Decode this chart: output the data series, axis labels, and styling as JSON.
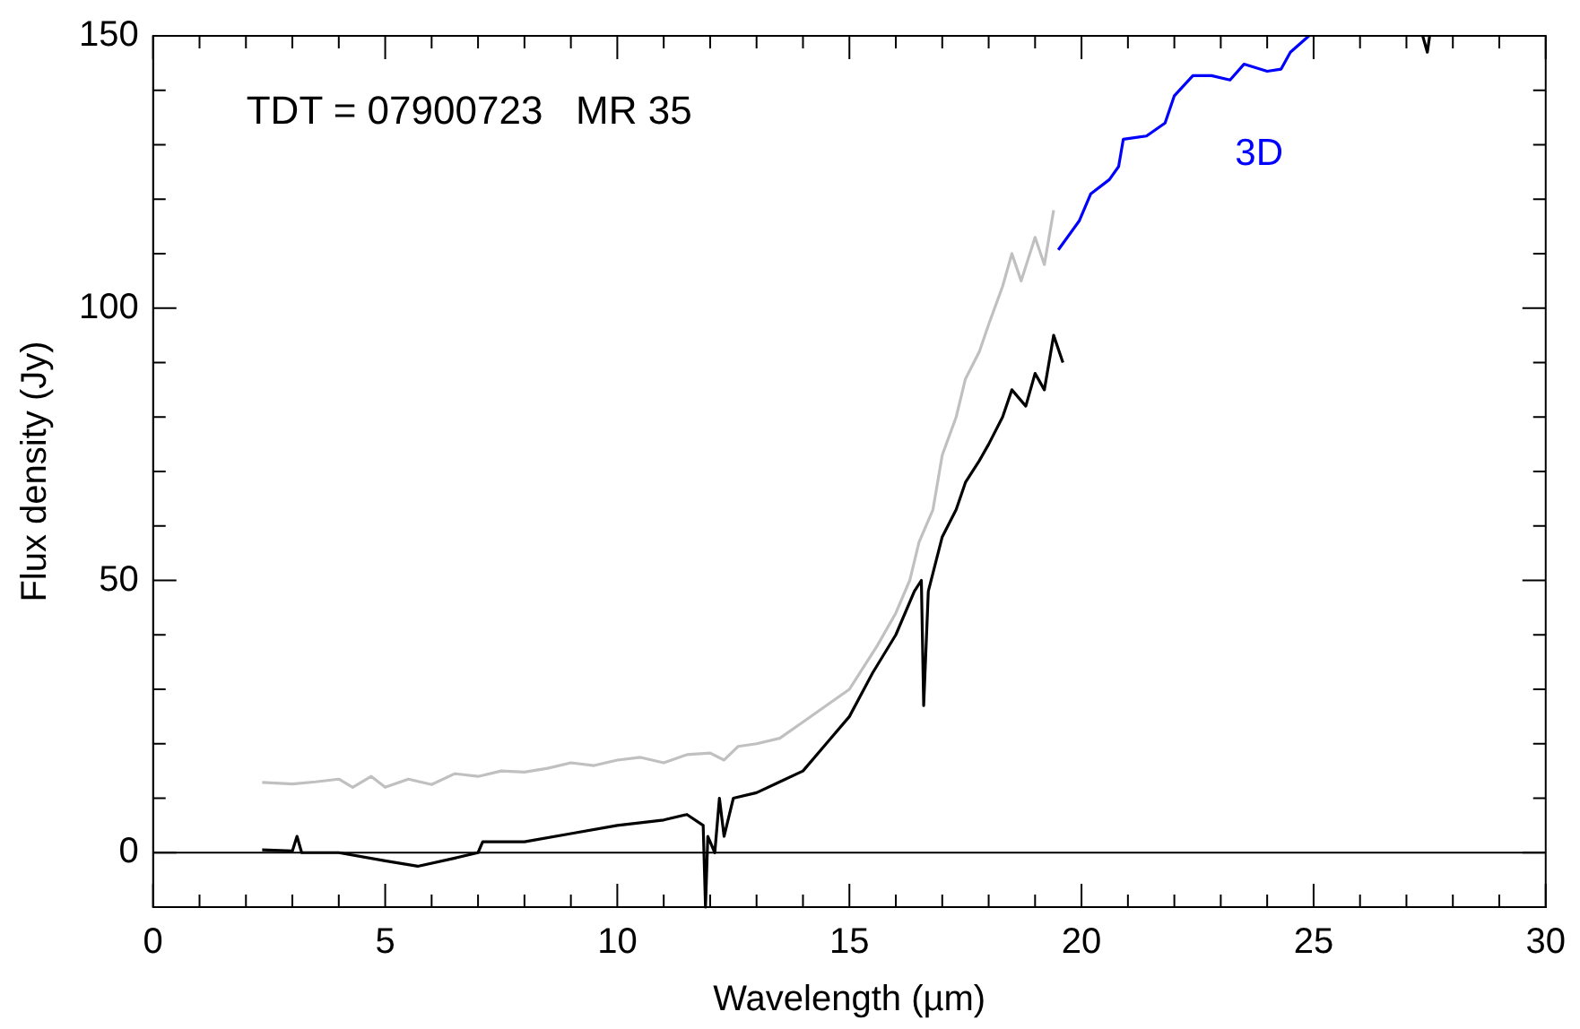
{
  "chart_data": {
    "type": "line",
    "xlabel": "Wavelength (µm)",
    "ylabel": "Flux density (Jy)",
    "xlim": [
      0,
      30
    ],
    "ylim": [
      -10,
      150
    ],
    "xticks": [
      0,
      {
        "value": 1,
        "label": null
      },
      {
        "value": 2,
        "label": null
      },
      {
        "value": 3,
        "label": null
      },
      {
        "value": 4,
        "label": null
      },
      5,
      {
        "value": 6,
        "label": null
      },
      {
        "value": 7,
        "label": null
      },
      {
        "value": 8,
        "label": null
      },
      {
        "value": 9,
        "label": null
      },
      10,
      {
        "value": 11,
        "label": null
      },
      {
        "value": 12,
        "label": null
      },
      {
        "value": 13,
        "label": null
      },
      {
        "value": 14,
        "label": null
      },
      15,
      {
        "value": 16,
        "label": null
      },
      {
        "value": 17,
        "label": null
      },
      {
        "value": 18,
        "label": null
      },
      {
        "value": 19,
        "label": null
      },
      20,
      {
        "value": 21,
        "label": null
      },
      {
        "value": 22,
        "label": null
      },
      {
        "value": 23,
        "label": null
      },
      {
        "value": 24,
        "label": null
      },
      25,
      {
        "value": 26,
        "label": null
      },
      {
        "value": 27,
        "label": null
      },
      {
        "value": 28,
        "label": null
      },
      {
        "value": 29,
        "label": null
      },
      30
    ],
    "yticks": [
      {
        "value": -10,
        "label": null
      },
      0,
      {
        "value": 10,
        "label": null
      },
      {
        "value": 20,
        "label": null
      },
      {
        "value": 30,
        "label": null
      },
      {
        "value": 40,
        "label": null
      },
      50,
      {
        "value": 60,
        "label": null
      },
      {
        "value": 70,
        "label": null
      },
      {
        "value": 80,
        "label": null
      },
      {
        "value": 90,
        "label": null
      },
      100,
      {
        "value": 110,
        "label": null
      },
      {
        "value": 120,
        "label": null
      },
      {
        "value": 130,
        "label": null
      },
      {
        "value": 140,
        "label": null
      },
      150
    ],
    "annotations": [
      "TDT = 07900723   MR 35"
    ],
    "ref_lines": [
      {
        "axis": "y",
        "value": 0,
        "color": "#000000"
      }
    ],
    "marker": "none",
    "line_style": "solid",
    "legend": false,
    "series": [
      {
        "color": "#c0c0c0",
        "x": [
          2.35,
          3.0,
          3.5,
          4.0,
          4.3,
          4.7,
          5.0,
          5.5,
          6.0,
          6.5,
          7.0,
          7.5,
          8.0,
          8.5,
          9.0,
          9.5,
          10.0,
          10.5,
          11.0,
          11.5,
          12.0,
          12.3,
          12.6,
          13.0,
          13.5,
          14.0,
          14.5,
          15.0,
          15.3,
          15.6,
          16.0,
          16.3,
          16.5,
          16.8,
          17.0,
          17.3,
          17.5,
          17.8,
          18.0,
          18.3,
          18.5,
          18.7,
          19.0,
          19.2,
          19.4
        ],
        "values": [
          12.9,
          12.6,
          13.0,
          13.5,
          12.0,
          14.0,
          12.0,
          13.5,
          12.5,
          14.5,
          14.0,
          15.0,
          14.8,
          15.5,
          16.5,
          16.0,
          17.0,
          17.5,
          16.5,
          18.0,
          18.3,
          17.0,
          19.5,
          20.0,
          21.0,
          24.0,
          27.0,
          30.0,
          34.0,
          38.0,
          44.0,
          50.0,
          57.0,
          63.0,
          73.0,
          80.0,
          87.0,
          92.0,
          97.0,
          104.0,
          110.0,
          105.0,
          113.0,
          108.0,
          118.0
        ]
      },
      {
        "color": "#000000",
        "x": [
          2.35,
          3.0,
          3.1,
          3.2,
          4.0,
          5.0,
          5.7,
          6.5,
          7.0,
          7.1,
          8.0,
          9.0,
          10.0,
          11.0,
          11.5,
          11.85,
          11.9,
          11.95,
          12.1,
          12.2,
          12.3,
          12.5,
          13.0,
          13.5,
          14.0,
          14.5,
          15.0,
          15.5,
          16.0,
          16.4,
          16.55,
          16.6,
          16.7,
          17.0,
          17.3,
          17.5,
          17.8,
          18.0,
          18.3,
          18.5,
          18.8,
          19.0,
          19.2,
          19.4,
          19.6,
          null,
          27.35,
          27.45,
          27.5
        ],
        "values": [
          0.5,
          0.3,
          3.0,
          0.0,
          0.0,
          -1.5,
          -2.5,
          -1.0,
          0.0,
          2.0,
          2.0,
          3.5,
          5.0,
          6.0,
          7.0,
          5.0,
          -10.0,
          3.0,
          0.0,
          10.0,
          3.0,
          10.0,
          11.0,
          13.0,
          15.0,
          20.0,
          25.0,
          33.0,
          40.0,
          48.0,
          50.0,
          27.0,
          48.0,
          58.0,
          63.0,
          68.0,
          72.0,
          75.0,
          80.0,
          85.0,
          82.0,
          88.0,
          85.0,
          95.0,
          90.0,
          null,
          150.0,
          147.0,
          150.0
        ]
      },
      {
        "name": "3D",
        "color": "#0000ff",
        "x": [
          19.5,
          19.95,
          20.2,
          20.6,
          20.8,
          20.9,
          21.4,
          21.8,
          22.0,
          22.4,
          22.8,
          23.2,
          23.5,
          24.0,
          24.3,
          24.5,
          24.9
        ],
        "values": [
          110.7,
          116.0,
          121.0,
          123.6,
          126.0,
          131.0,
          131.6,
          134.0,
          139.0,
          142.7,
          142.7,
          141.9,
          144.8,
          143.5,
          143.9,
          147.0,
          150.0
        ]
      }
    ]
  }
}
